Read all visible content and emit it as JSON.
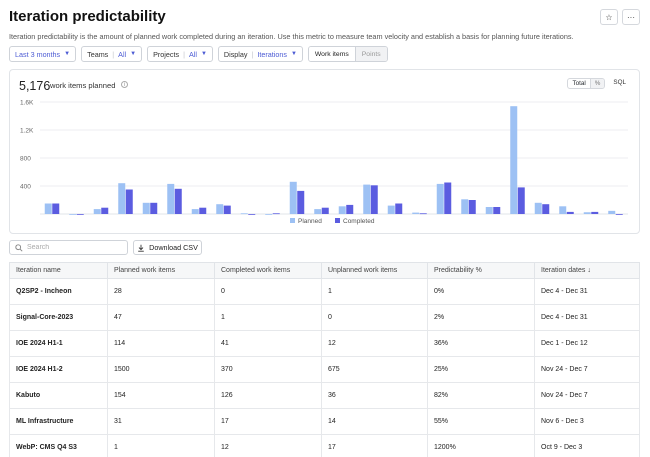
{
  "page": {
    "title": "Iteration predictability",
    "description": "Iteration predictability is the amount of planned work completed during an iteration. Use this metric to measure team velocity and establish a basis for planning future iterations."
  },
  "filters": {
    "period": "Last 3 months",
    "teams_label": "Teams",
    "teams_value": "All",
    "projects_label": "Projects",
    "projects_value": "All",
    "display_label": "Display",
    "display_value": "Iterations",
    "mode_work_items": "Work items",
    "mode_points": "Points"
  },
  "summary": {
    "total": "5,176",
    "label": "work items planned",
    "toggle_total": "Total",
    "toggle_pct": "%",
    "toggle_sql": "SQL"
  },
  "colors": {
    "planned": "#9dc1f4",
    "completed": "#5b5ce0",
    "accent": "#4c5bd4"
  },
  "chart_data": {
    "type": "bar",
    "y_ticks": [
      "1.6K",
      "1.2K",
      "800",
      "400"
    ],
    "ylim": [
      0,
      1600
    ],
    "series": [
      {
        "name": "Planned",
        "values": [
          150,
          0,
          70,
          440,
          160,
          430,
          70,
          140,
          10,
          0,
          460,
          70,
          110,
          420,
          120,
          20,
          430,
          210,
          100,
          1540,
          160,
          110,
          25,
          45
        ]
      },
      {
        "name": "Completed",
        "values": [
          150,
          0,
          90,
          350,
          160,
          360,
          90,
          120,
          0,
          10,
          330,
          90,
          130,
          410,
          150,
          10,
          450,
          200,
          100,
          380,
          140,
          30,
          30,
          0
        ]
      }
    ]
  },
  "table": {
    "search_placeholder": "Search",
    "download_label": "Download CSV",
    "columns": [
      "Iteration name",
      "Planned work items",
      "Completed work items",
      "Unplanned work items",
      "Predictability %",
      "Iteration dates"
    ],
    "rows": [
      [
        "Q2SP2 - Incheon",
        "28",
        "0",
        "1",
        "0%",
        "Dec 4 - Dec 31"
      ],
      [
        "Signal-Core-2023",
        "47",
        "1",
        "0",
        "2%",
        "Dec 4 - Dec 31"
      ],
      [
        "IOE 2024 H1-1",
        "114",
        "41",
        "12",
        "36%",
        "Dec 1 - Dec 12"
      ],
      [
        "IOE 2024 H1-2",
        "1500",
        "370",
        "675",
        "25%",
        "Nov 24 - Dec 7"
      ],
      [
        "Kabuto",
        "154",
        "126",
        "36",
        "82%",
        "Nov 24 - Dec 7"
      ],
      [
        "ML Infrastructure",
        "31",
        "17",
        "14",
        "55%",
        "Nov 6 - Dec 3"
      ],
      [
        "WebP: CMS Q4 S3",
        "1",
        "12",
        "17",
        "1200%",
        "Oct 9 - Dec 3"
      ]
    ]
  }
}
